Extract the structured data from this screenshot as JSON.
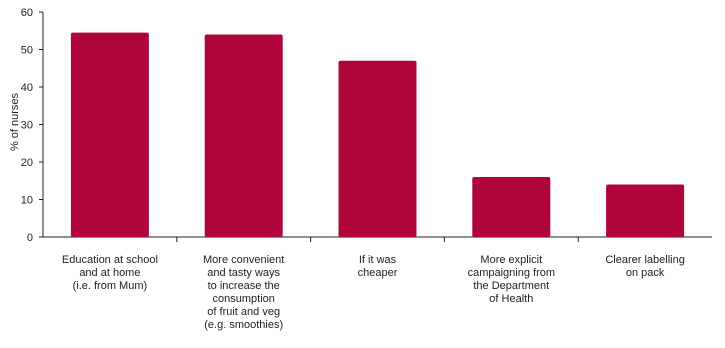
{
  "chart_data": {
    "type": "bar",
    "ylabel": "% of nurses",
    "ylim": [
      0,
      60
    ],
    "yticks": [
      0,
      10,
      20,
      30,
      40,
      50,
      60
    ],
    "categories": [
      "Education at school\nand at home\n(i.e. from Mum)",
      "More convenient\nand tasty ways\nto increase the\nconsumption\nof fruit and veg\n(e.g. smoothies)",
      "If it was\ncheaper",
      "More explicit\ncampaigning from\nthe Department\nof Health",
      "Clearer labelling\non pack"
    ],
    "values": [
      54.5,
      54,
      47,
      16,
      14
    ],
    "bar_color": "#b0053a",
    "axis_color": "#222222"
  }
}
